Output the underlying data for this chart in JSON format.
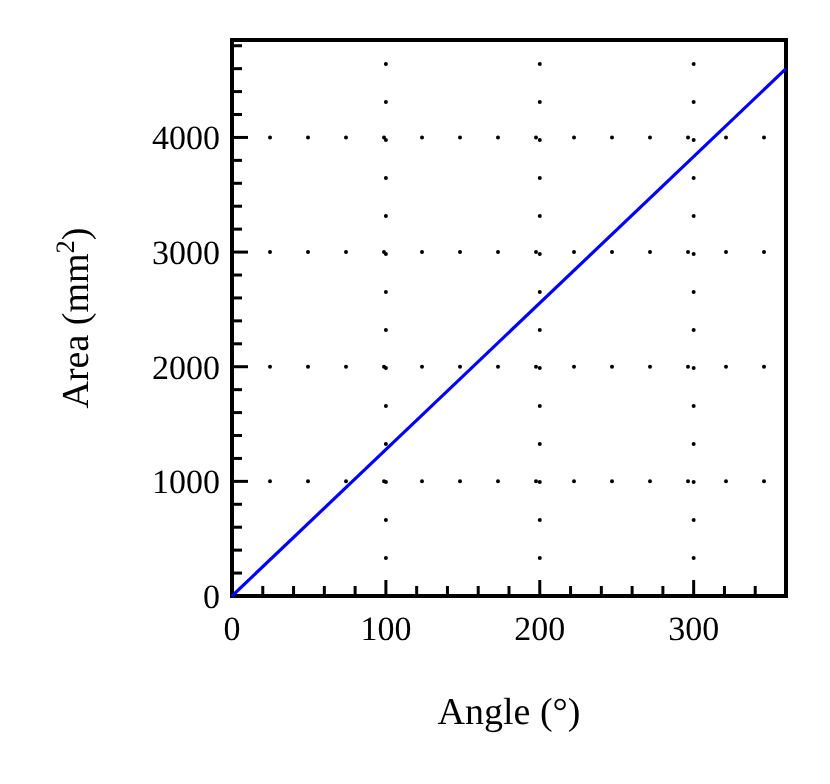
{
  "chart_data": {
    "type": "line",
    "xlabel": "Angle (°)",
    "ylabel": "Area (mm$^{2}$)",
    "x": [
      0,
      360
    ],
    "series": [
      {
        "color": "#0000ff",
        "values": [
          0,
          4600
        ]
      }
    ],
    "xlim": [
      0,
      360
    ],
    "ylim": [
      0,
      4850
    ],
    "xticks": [
      0,
      100,
      200,
      300
    ],
    "yticks": [
      0,
      1000,
      2000,
      3000,
      4000
    ],
    "grid": true,
    "line_style": "solid"
  }
}
